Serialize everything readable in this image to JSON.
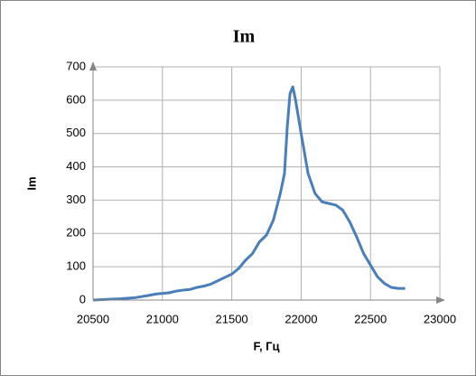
{
  "chart_data": {
    "type": "line",
    "title": "Im",
    "x_label": "F, Гц",
    "y_label": "Im",
    "x": [
      20500,
      20600,
      20700,
      20800,
      20900,
      20950,
      21000,
      21050,
      21100,
      21150,
      21200,
      21250,
      21300,
      21350,
      21400,
      21450,
      21500,
      21550,
      21600,
      21650,
      21700,
      21750,
      21800,
      21850,
      21880,
      21900,
      21920,
      21940,
      21960,
      22000,
      22050,
      22100,
      22150,
      22200,
      22250,
      22300,
      22350,
      22400,
      22450,
      22500,
      22550,
      22600,
      22650,
      22700,
      22750
    ],
    "values": [
      0,
      2,
      4,
      7,
      14,
      18,
      20,
      22,
      27,
      30,
      32,
      38,
      42,
      48,
      58,
      68,
      78,
      95,
      120,
      140,
      175,
      195,
      240,
      320,
      380,
      520,
      620,
      640,
      600,
      500,
      380,
      320,
      295,
      290,
      285,
      270,
      235,
      190,
      140,
      105,
      70,
      50,
      38,
      35,
      35
    ],
    "color": "#4a7ebb",
    "xlim": [
      20500,
      23000
    ],
    "xticks": [
      20500,
      21000,
      21500,
      22000,
      22500,
      23000
    ],
    "ylim": [
      0,
      700
    ],
    "yticks": [
      0,
      100,
      200,
      300,
      400,
      500,
      600,
      700
    ],
    "grid": true
  }
}
